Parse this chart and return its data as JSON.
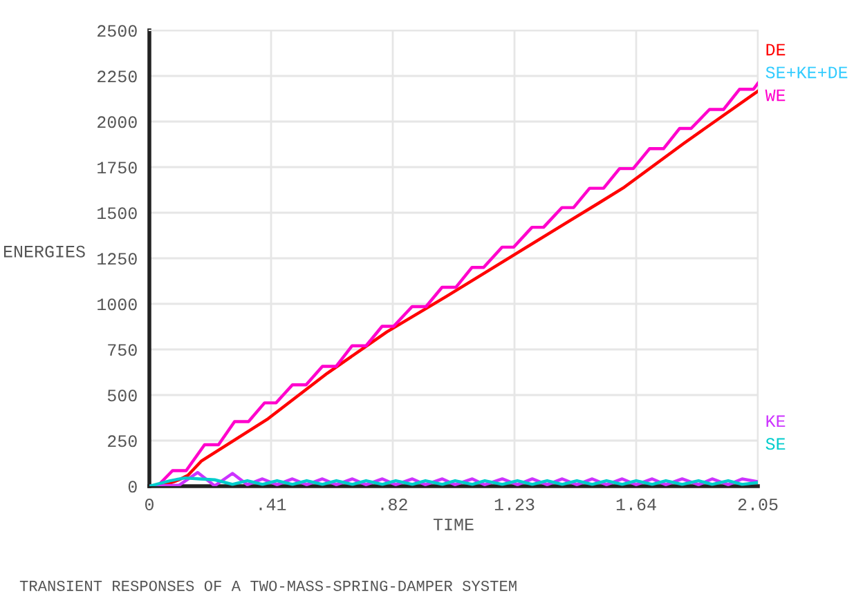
{
  "chart_data": {
    "type": "line",
    "xlabel": "TIME",
    "ylabel": "ENERGIES",
    "annotations": [
      "TRANSIENT RESPONSES OF A TWO-MASS-SPRING-DAMPER SYSTEM"
    ],
    "xlim": [
      0,
      2.05
    ],
    "ylim": [
      0,
      2500
    ],
    "xticks": [
      0,
      {
        "value": 0.41,
        "label": ".41"
      },
      {
        "value": 0.82,
        "label": ".82"
      },
      {
        "value": 1.23,
        "label": "1.23"
      },
      {
        "value": 1.64,
        "label": "1.64"
      },
      {
        "value": 2.05,
        "label": "2.05"
      }
    ],
    "yticks": [
      0,
      250,
      500,
      750,
      1000,
      1250,
      1500,
      1750,
      2000,
      2250,
      2500
    ],
    "grid": true,
    "legend": "right",
    "marker": "none",
    "line_style": "solid",
    "series": [
      {
        "name": "DE",
        "color": "#ff0000",
        "x": [
          0,
          0.05,
          0.1,
          0.13,
          0.176,
          0.4,
          0.6,
          0.8,
          1.0,
          1.2,
          1.4,
          1.514,
          1.6,
          1.8,
          2.05
        ],
        "values": [
          0,
          5,
          35,
          60,
          139,
          370,
          620,
          846,
          1040,
          1240,
          1440,
          1553,
          1640,
          1880,
          2167
        ]
      },
      {
        "name": "SE+KE+DE",
        "color": "#33ccff"
      },
      {
        "name": "WE",
        "color": "#ff00cc",
        "x": [
          0,
          0.03,
          0.078,
          0.124,
          0.186,
          0.233,
          0.287,
          0.334,
          0.388,
          0.427,
          0.482,
          0.528,
          0.583,
          0.629,
          0.683,
          0.73,
          0.784,
          0.823,
          0.885,
          0.932,
          0.986,
          1.033,
          1.087,
          1.126,
          1.188,
          1.227,
          1.289,
          1.328,
          1.39,
          1.429,
          1.483,
          1.53,
          1.584,
          1.63,
          1.685,
          1.732,
          1.786,
          1.825,
          1.887,
          1.934,
          1.988,
          2.035,
          2.05
        ],
        "values": [
          0,
          5,
          85,
          85,
          227,
          227,
          354,
          354,
          457,
          457,
          556,
          556,
          657,
          657,
          770,
          770,
          877,
          877,
          985,
          985,
          1091,
          1091,
          1200,
          1200,
          1311,
          1311,
          1420,
          1420,
          1528,
          1528,
          1634,
          1634,
          1742,
          1742,
          1851,
          1851,
          1962,
          1962,
          2066,
          2066,
          2177,
          2177,
          2210
        ]
      },
      {
        "name": "KE",
        "color": "#cc33ff",
        "x": [
          0,
          0.1,
          0.163,
          0.22,
          0.28,
          0.33,
          0.381,
          0.43,
          0.482,
          0.53,
          0.583,
          0.63,
          0.684,
          0.73,
          0.785,
          0.83,
          0.886,
          0.93,
          0.987,
          1.03,
          1.088,
          1.13,
          1.189,
          1.24,
          1.29,
          1.34,
          1.391,
          1.44,
          1.492,
          1.54,
          1.593,
          1.64,
          1.694,
          1.74,
          1.795,
          1.85,
          1.896,
          1.95,
          1.997,
          2.05
        ],
        "values": [
          0,
          5,
          75,
          2,
          70,
          8,
          40,
          8,
          40,
          8,
          40,
          8,
          40,
          8,
          40,
          8,
          40,
          8,
          40,
          8,
          40,
          8,
          40,
          8,
          40,
          8,
          40,
          8,
          40,
          8,
          40,
          8,
          40,
          8,
          40,
          8,
          40,
          8,
          40,
          25
        ]
      },
      {
        "name": "SE",
        "color": "#00cccc",
        "x": [
          0,
          0.07,
          0.12,
          0.17,
          0.22,
          0.28,
          0.33,
          0.381,
          0.43,
          0.482,
          0.53,
          0.583,
          0.63,
          0.684,
          0.73,
          0.785,
          0.83,
          0.886,
          0.93,
          0.987,
          1.03,
          1.088,
          1.13,
          1.189,
          1.24,
          1.29,
          1.34,
          1.391,
          1.44,
          1.492,
          1.54,
          1.593,
          1.64,
          1.694,
          1.74,
          1.795,
          1.85,
          1.896,
          1.95,
          1.997,
          2.05
        ],
        "values": [
          0,
          30,
          45,
          40,
          35,
          10,
          30,
          10,
          30,
          10,
          30,
          10,
          30,
          10,
          30,
          10,
          30,
          10,
          30,
          10,
          30,
          10,
          30,
          10,
          30,
          10,
          30,
          10,
          30,
          10,
          30,
          10,
          30,
          10,
          30,
          10,
          30,
          10,
          30,
          10,
          20
        ]
      }
    ]
  }
}
